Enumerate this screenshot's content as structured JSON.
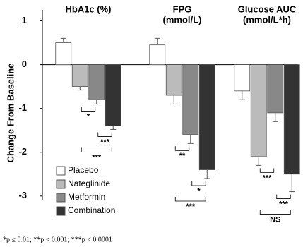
{
  "chart_data": {
    "type": "bar",
    "y_label": "Change From Baseline",
    "categories": [
      [
        "HbA1c (%)"
      ],
      [
        "FPG",
        "(mmol/L)"
      ],
      [
        "Glucose AUC",
        "(mmol/L*h)"
      ]
    ],
    "series": [
      {
        "name": "Placebo",
        "color": "#ffffff",
        "values": [
          0.5,
          0.45,
          -0.6
        ],
        "errors": [
          0.1,
          0.15,
          0.2
        ]
      },
      {
        "name": "Nateglinide",
        "color": "#bbbbbb",
        "values": [
          -0.5,
          -0.7,
          -2.1
        ],
        "errors": [
          0.08,
          0.2,
          0.2
        ]
      },
      {
        "name": "Metformin",
        "color": "#888888",
        "values": [
          -0.8,
          -1.6,
          -1.1
        ],
        "errors": [
          0.1,
          0.2,
          0.2
        ]
      },
      {
        "name": "Combination",
        "color": "#333333",
        "values": [
          -1.4,
          -2.4,
          -2.5
        ],
        "errors": [
          0.08,
          0.2,
          0.4
        ]
      }
    ],
    "significance": [
      [
        "*",
        "***",
        "***"
      ],
      [
        "**",
        "*",
        "***"
      ],
      [
        "***",
        "***",
        "NS"
      ]
    ],
    "ylim": [
      -3.1,
      1.25
    ],
    "yticks": [
      -3,
      -2,
      -1,
      0,
      1
    ],
    "footnote": "*p ≤ 0.01; **p < 0.001; ***p < 0.0001"
  }
}
